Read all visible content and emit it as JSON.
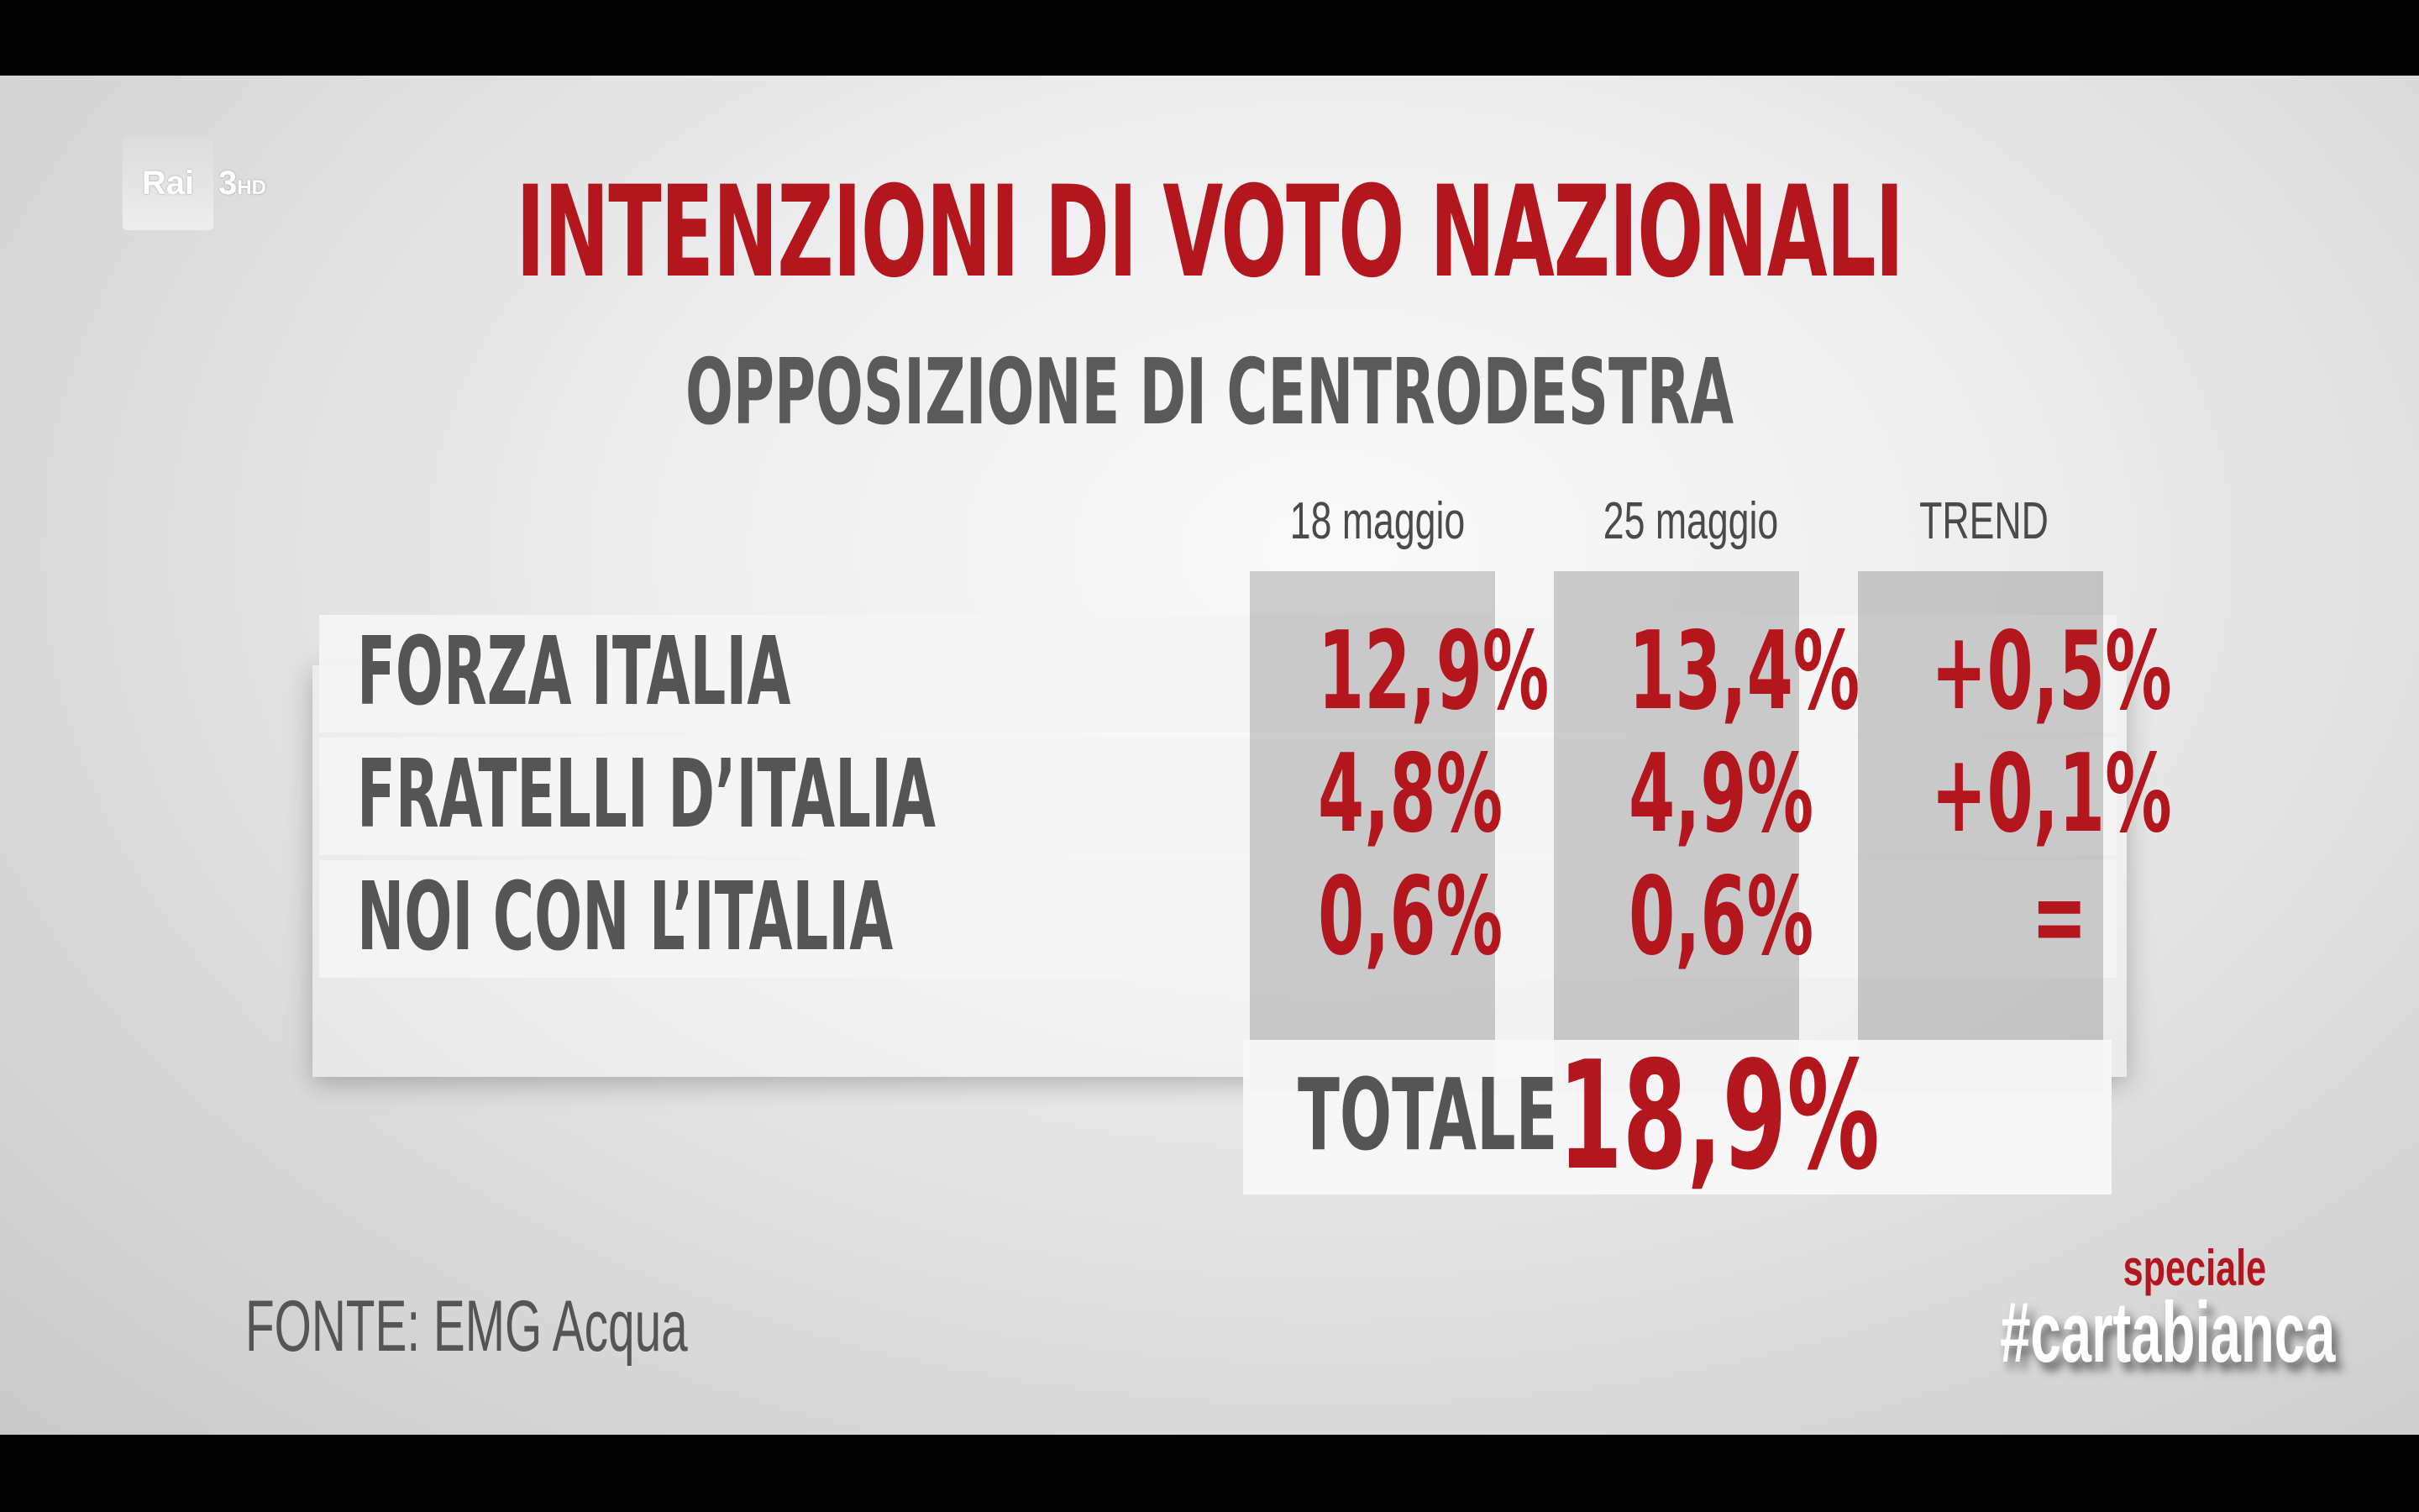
{
  "header": {
    "channel_logo": "Rai",
    "channel_number": "3",
    "channel_hd": "HD"
  },
  "chart_data": {
    "type": "table",
    "title": "INTENZIONI DI VOTO NAZIONALI",
    "subtitle": "OPPOSIZIONE DI CENTRODESTRA",
    "columns": [
      "18 maggio",
      "25 maggio",
      "TREND"
    ],
    "rows": [
      {
        "party": "FORZA ITALIA",
        "values": [
          "12,9%",
          "13,4%",
          "+0,5%"
        ]
      },
      {
        "party": "FRATELLI D’ITALIA",
        "values": [
          "4,8%",
          "4,9%",
          "+0,1%"
        ]
      },
      {
        "party": "NOI CON L’ITALIA",
        "values": [
          "0,6%",
          "0,6%",
          "="
        ]
      }
    ],
    "total_label": "TOTALE",
    "total_value": "18,9%",
    "source": "FONTE: EMG Acqua"
  },
  "branding": {
    "program_prefix": "speciale",
    "program_name": "#cartabianca"
  },
  "colors": {
    "accent_red": "#b3161d",
    "text_gray": "#555555"
  }
}
